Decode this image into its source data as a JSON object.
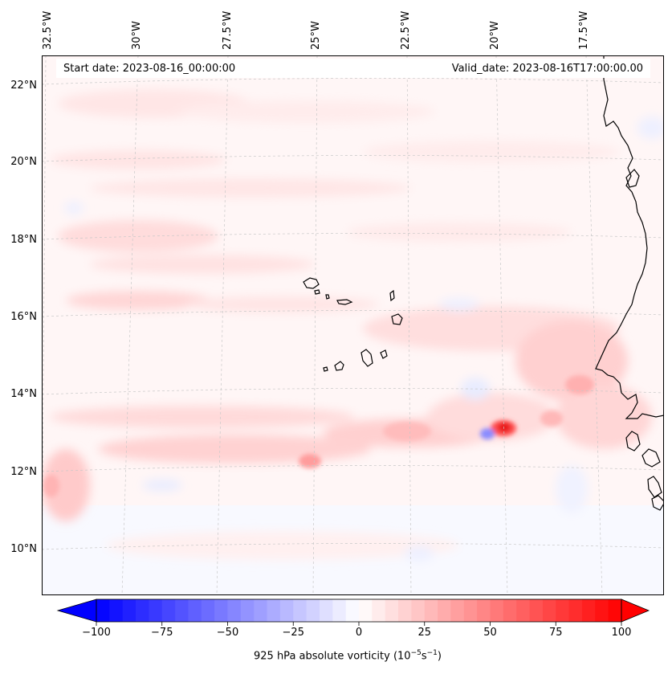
{
  "map": {
    "start_date_label": "Start date: 2023-08-16_00:00:00",
    "valid_date_label": "Valid_date: 2023-08-16T17:00:00.00",
    "lon_labels": [
      "32.5°W",
      "30°W",
      "27.5°W",
      "25°W",
      "22.5°W",
      "20°W",
      "17.5°W"
    ],
    "lat_labels": [
      "22°N",
      "20°N",
      "18°N",
      "16°N",
      "14°N",
      "12°N",
      "10°N"
    ],
    "colormap": {
      "negative": "#0000ff",
      "neutral": "#ffffff",
      "positive": "#ff0000"
    }
  },
  "colorbar": {
    "ticks": [
      "−100",
      "−75",
      "−50",
      "−25",
      "0",
      "25",
      "50",
      "75",
      "100"
    ],
    "label_main": "925 hPa absolute vorticity (10",
    "label_exp1": "−5",
    "label_mid": "s",
    "label_exp2": "−1",
    "label_end": ")",
    "range": [
      -100,
      100
    ],
    "levels": 41
  }
}
